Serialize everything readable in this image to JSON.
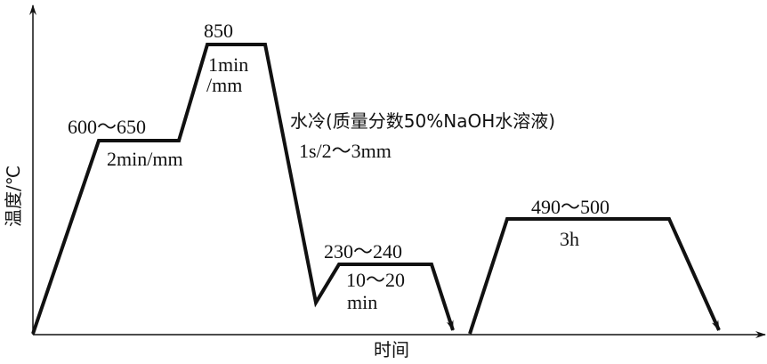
{
  "axes": {
    "ylabel": "温度/℃",
    "xlabel": "时间"
  },
  "steps": {
    "preheat_temp": "600～650",
    "preheat_time": "2min/mm",
    "austenitize_temp": "850",
    "austenitize_time_1": "1min",
    "austenitize_time_2": "/mm",
    "quench_medium": "水冷(质量分数50%NaOH水溶液)",
    "quench_time": "1s/2～3mm",
    "temper1_temp": "230～240",
    "temper1_time_1": "10～20",
    "temper1_time_2": "min",
    "temper2_temp": "490～500",
    "temper2_time": "3h"
  },
  "colors": {
    "line": "#111111"
  }
}
